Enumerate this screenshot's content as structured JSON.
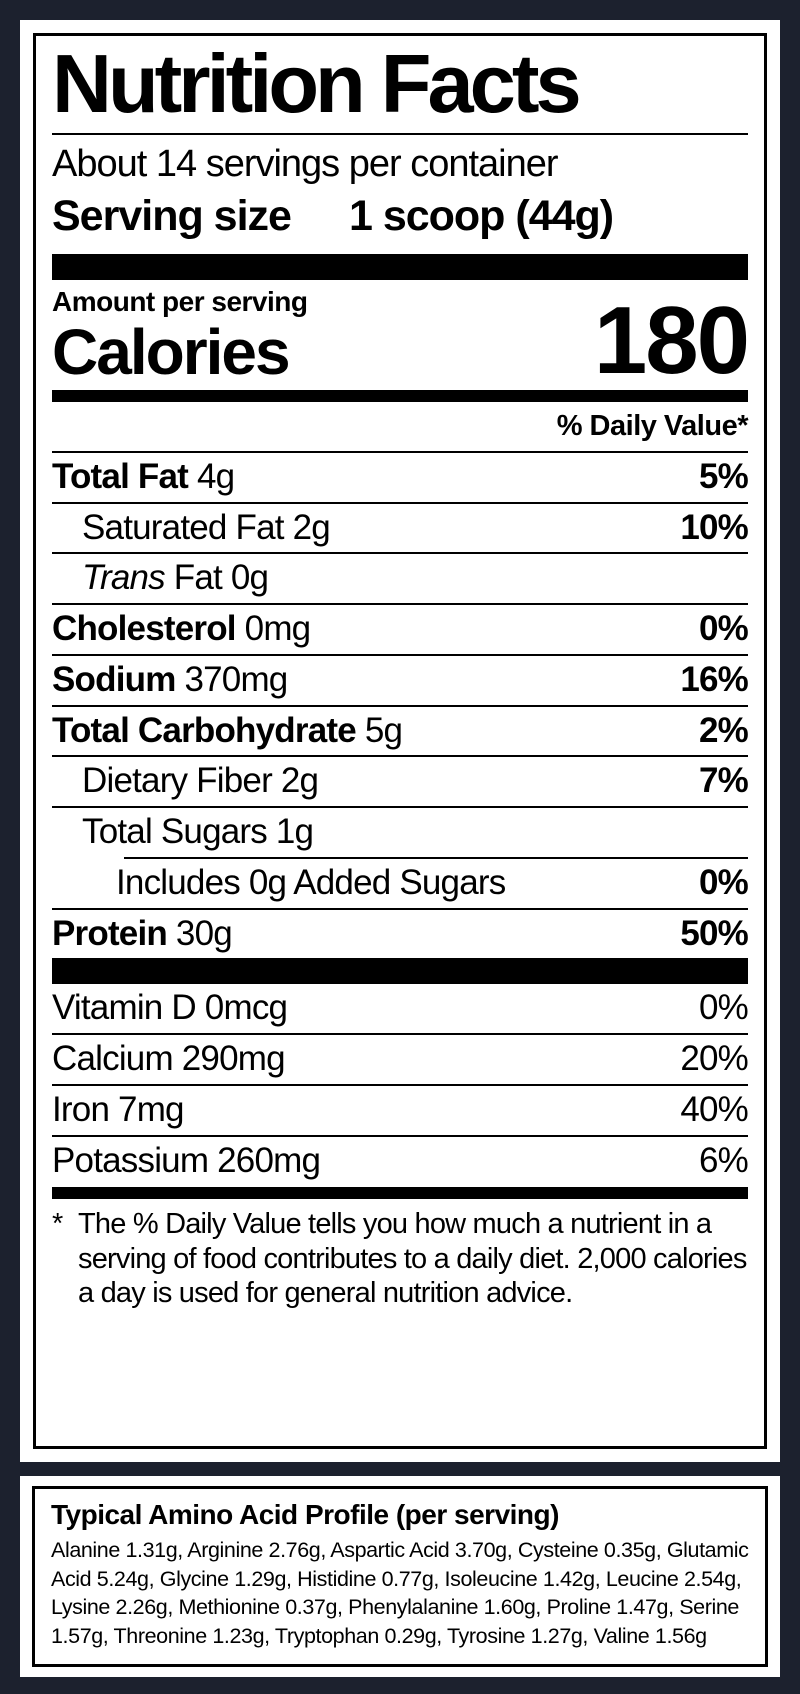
{
  "colors": {
    "background": "#1c212e",
    "panel": "#ffffff",
    "ink": "#000000"
  },
  "label": {
    "title": "Nutrition Facts",
    "servings_per_container": "About 14 servings per container",
    "serving_size_label": "Serving size",
    "serving_size_value": "1 scoop (44g)",
    "amount_per_serving": "Amount per serving",
    "calories_label": "Calories",
    "calories_value": "180",
    "daily_value_header": "% Daily Value*",
    "rows": [
      {
        "b": "Total Fat",
        "t": " 4g",
        "dv": "5%",
        "indent": 0,
        "sep": "full"
      },
      {
        "t": "Saturated Fat 2g",
        "dv": "10%",
        "indent": 1,
        "sep": "full"
      },
      {
        "i": "Trans",
        "t": "  Fat 0g",
        "dv": "",
        "indent": 1,
        "sep": "full"
      },
      {
        "b": "Cholesterol",
        "t": " 0mg",
        "dv": "0%",
        "indent": 0,
        "sep": "full"
      },
      {
        "b": "Sodium",
        "t": " 370mg",
        "dv": "16%",
        "indent": 0,
        "sep": "full"
      },
      {
        "b": "Total Carbohydrate",
        "t": " 5g",
        "dv": "2%",
        "indent": 0,
        "sep": "full"
      },
      {
        "t": "Dietary Fiber 2g",
        "dv": "7%",
        "indent": 1,
        "sep": "full"
      },
      {
        "t": "Total Sugars 1g",
        "dv": "",
        "indent": 1,
        "sep": "indent"
      },
      {
        "t": "Includes 0g Added Sugars",
        "dv": "0%",
        "indent": 2,
        "sep": "full"
      },
      {
        "b": "Protein",
        "t": " 30g",
        "dv": "50%",
        "indent": 0,
        "sep": "none"
      }
    ],
    "micronutrients": [
      {
        "t": "Vitamin D 0mcg",
        "dv": "0%",
        "sep": "full"
      },
      {
        "t": "Calcium 290mg",
        "dv": "20%",
        "sep": "full"
      },
      {
        "t": "Iron 7mg",
        "dv": "40%",
        "sep": "full"
      },
      {
        "t": "Potassium 260mg",
        "dv": "6%",
        "sep": "none"
      }
    ],
    "footnote_star": "*",
    "footnote": "The % Daily Value tells you how much a nutrient in a serving of food contributes to a daily diet. 2,000 calories a day is used for general nutrition advice."
  },
  "amino_panel": {
    "heading": "Typical Amino Acid Profile (per serving)",
    "body": "Alanine 1.31g, Arginine 2.76g, Aspartic Acid 3.70g, Cysteine 0.35g, Glutamic Acid 5.24g, Glycine 1.29g, Histidine 0.77g, Isoleucine 1.42g,  Leucine 2.54g, Lysine 2.26g, Methionine 0.37g, Phenylalanine 1.60g,  Proline 1.47g, Serine 1.57g, Threonine 1.23g, Tryptophan 0.29g, Tyrosine 1.27g, Valine 1.56g"
  }
}
